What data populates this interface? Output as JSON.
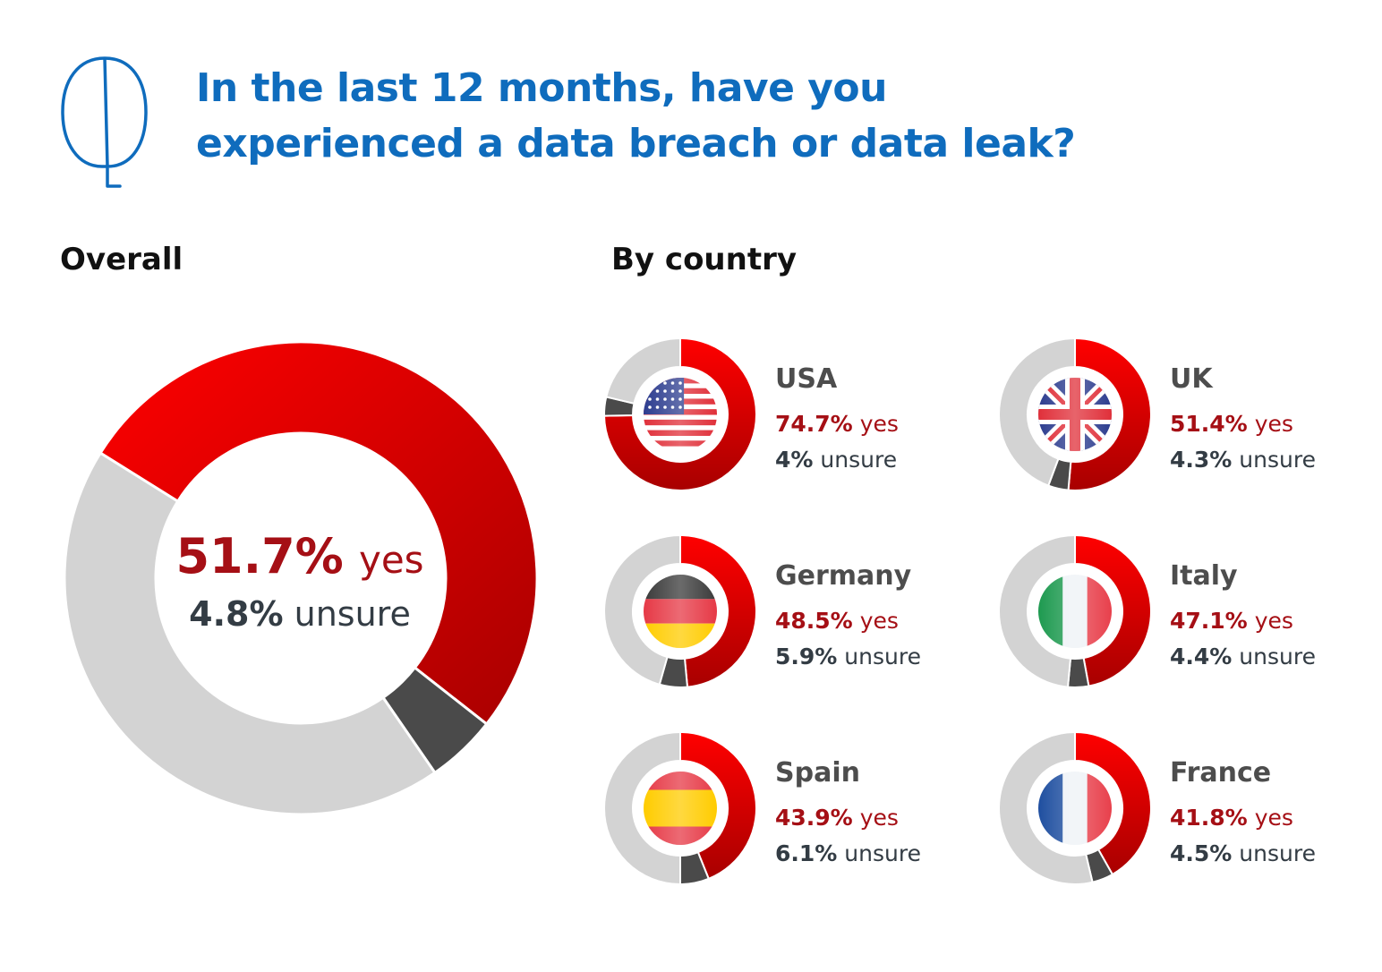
{
  "title": {
    "line1": "In the last 12 months, have you",
    "line2": "experienced a data breach or data leak?"
  },
  "icons": {
    "question": "speech-bubble-icon"
  },
  "sections": {
    "overall": "Overall",
    "by_country": "By country"
  },
  "colors": {
    "title": "#0F6CBD",
    "yes_light": "#FF0000",
    "yes_dark": "#A80000",
    "unsure": "#4a4a4a",
    "no": "#D3D3D3",
    "yes_text": "#A50F15",
    "unsure_text": "#333c44"
  },
  "overall": {
    "yes_value": "51.7%",
    "yes_word": "yes",
    "unsure_value": "4.8%",
    "unsure_word": "unsure"
  },
  "countries": [
    {
      "name": "USA",
      "yes_value": "74.7%",
      "yes_word": "yes",
      "unsure_value": "4%",
      "unsure_word": "unsure",
      "flag": "usa-flag-icon"
    },
    {
      "name": "UK",
      "yes_value": "51.4%",
      "yes_word": "yes",
      "unsure_value": "4.3%",
      "unsure_word": "unsure",
      "flag": "uk-flag-icon"
    },
    {
      "name": "Germany",
      "yes_value": "48.5%",
      "yes_word": "yes",
      "unsure_value": "5.9%",
      "unsure_word": "unsure",
      "flag": "germany-flag-icon"
    },
    {
      "name": "Italy",
      "yes_value": "47.1%",
      "yes_word": "yes",
      "unsure_value": "4.4%",
      "unsure_word": "unsure",
      "flag": "italy-flag-icon"
    },
    {
      "name": "Spain",
      "yes_value": "43.9%",
      "yes_word": "yes",
      "unsure_value": "6.1%",
      "unsure_word": "unsure",
      "flag": "spain-flag-icon"
    },
    {
      "name": "France",
      "yes_value": "41.8%",
      "yes_word": "yes",
      "unsure_value": "4.5%",
      "unsure_word": "unsure",
      "flag": "france-flag-icon"
    }
  ],
  "chart_data": [
    {
      "type": "pie",
      "title": "Overall",
      "categories": [
        "yes",
        "unsure",
        "no"
      ],
      "values": [
        51.7,
        4.8,
        43.5
      ]
    },
    {
      "type": "pie",
      "title": "By country",
      "categories": [
        "yes",
        "unsure",
        "no"
      ],
      "series": [
        {
          "name": "USA",
          "values": [
            74.7,
            4.0,
            21.3
          ]
        },
        {
          "name": "UK",
          "values": [
            51.4,
            4.3,
            44.3
          ]
        },
        {
          "name": "Germany",
          "values": [
            48.5,
            5.9,
            45.6
          ]
        },
        {
          "name": "Italy",
          "values": [
            47.1,
            4.4,
            48.5
          ]
        },
        {
          "name": "Spain",
          "values": [
            43.9,
            6.1,
            50.0
          ]
        },
        {
          "name": "France",
          "values": [
            41.8,
            4.5,
            53.7
          ]
        }
      ]
    }
  ]
}
